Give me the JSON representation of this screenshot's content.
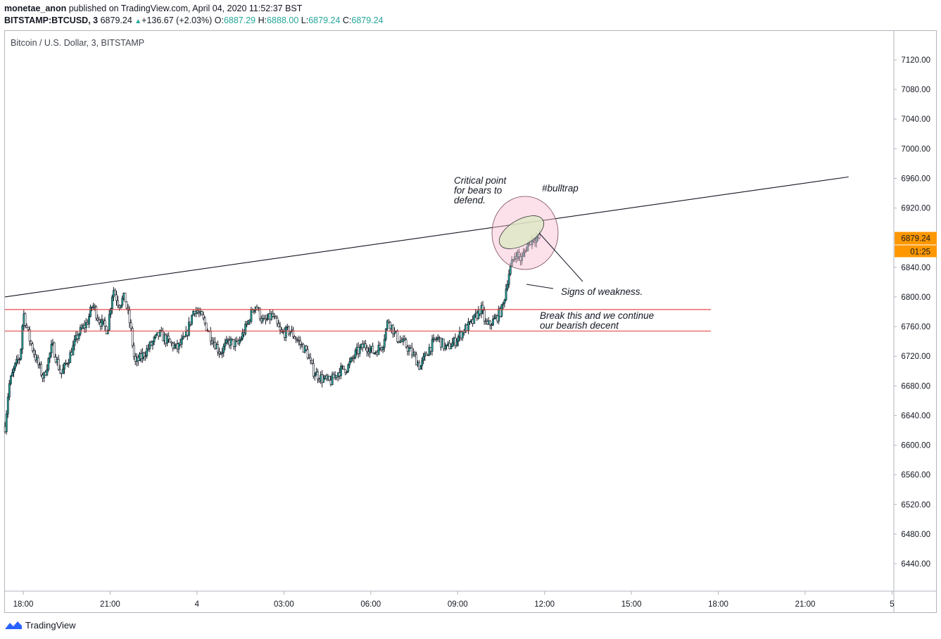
{
  "header": {
    "user": "monetae_anon",
    "published": "published on TradingView.com, April 04, 2020 11:52:37 BST",
    "symbol": "BITSTAMP:BTCUSD, 3",
    "last": "6879.24",
    "change": "+136.67 (+2.03%)",
    "o_label": "O:",
    "o_value": "6887.29",
    "h_label": "H:",
    "h_value": "6888.00",
    "l_label": "L:",
    "l_value": "6879.24",
    "c_label": "C:",
    "c_value": "6879.24"
  },
  "chart_title": "Bitcoin / U.S. Dollar, 3, BITSTAMP",
  "footer": {
    "brand": "TradingView"
  },
  "colors": {
    "up": "#26a69a",
    "down": "#ffffff",
    "wick": "#131722",
    "price_label": "#ff9800",
    "support": "#e53935",
    "ellipse_outer": "#f8bbd0",
    "ellipse_inner": "#dce8c4"
  },
  "chart_data": {
    "type": "candlestick",
    "title": "Bitcoin / U.S. Dollar, 3, BITSTAMP",
    "y_ticks": [
      7120,
      7080,
      7040,
      7000,
      6960,
      6920,
      6880,
      6840,
      6800,
      6760,
      6720,
      6680,
      6640,
      6600,
      6560,
      6520,
      6480,
      6440
    ],
    "y_tick_labels": [
      "7120.00",
      "7080.00",
      "7040.00",
      "7000.00",
      "6960.00",
      "6920.00",
      "6880.00",
      "6840.00",
      "6800.00",
      "6760.00",
      "6720.00",
      "6680.00",
      "6640.00",
      "6600.00",
      "6560.00",
      "6520.00",
      "6480.00",
      "6440.00"
    ],
    "ylim": [
      6400,
      7150
    ],
    "x_ticks": [
      {
        "label": "18:00",
        "h": 18
      },
      {
        "label": "21:00",
        "h": 21
      },
      {
        "label": "4",
        "h": 24
      },
      {
        "label": "03:00",
        "h": 27
      },
      {
        "label": "06:00",
        "h": 30
      },
      {
        "label": "09:00",
        "h": 33
      },
      {
        "label": "12:00",
        "h": 36
      },
      {
        "label": "15:00",
        "h": 39
      },
      {
        "label": "18:00",
        "h": 42
      },
      {
        "label": "21:00",
        "h": 45
      },
      {
        "label": "5",
        "h": 48
      }
    ],
    "xlim_hours": [
      17.37,
      47.97
    ],
    "current_price": "6879.24",
    "countdown": "01:25",
    "current_value": 6879.24,
    "close_path": [
      [
        17.37,
        6625
      ],
      [
        17.5,
        6680
      ],
      [
        17.7,
        6705
      ],
      [
        17.9,
        6720
      ],
      [
        18.0,
        6780
      ],
      [
        18.2,
        6745
      ],
      [
        18.45,
        6715
      ],
      [
        18.7,
        6690
      ],
      [
        19.0,
        6735
      ],
      [
        19.3,
        6695
      ],
      [
        19.6,
        6720
      ],
      [
        19.9,
        6750
      ],
      [
        20.2,
        6765
      ],
      [
        20.4,
        6790
      ],
      [
        20.6,
        6770
      ],
      [
        20.9,
        6755
      ],
      [
        21.1,
        6812
      ],
      [
        21.3,
        6790
      ],
      [
        21.5,
        6800
      ],
      [
        21.7,
        6760
      ],
      [
        21.85,
        6710
      ],
      [
        22.1,
        6720
      ],
      [
        22.4,
        6735
      ],
      [
        22.7,
        6750
      ],
      [
        23.0,
        6740
      ],
      [
        23.3,
        6730
      ],
      [
        23.6,
        6745
      ],
      [
        23.9,
        6785
      ],
      [
        24.2,
        6770
      ],
      [
        24.5,
        6745
      ],
      [
        24.8,
        6725
      ],
      [
        25.1,
        6740
      ],
      [
        25.4,
        6735
      ],
      [
        25.7,
        6760
      ],
      [
        26.0,
        6790
      ],
      [
        26.3,
        6765
      ],
      [
        26.6,
        6775
      ],
      [
        26.9,
        6750
      ],
      [
        27.2,
        6755
      ],
      [
        27.5,
        6740
      ],
      [
        27.8,
        6725
      ],
      [
        28.0,
        6700
      ],
      [
        28.3,
        6690
      ],
      [
        28.6,
        6685
      ],
      [
        28.9,
        6700
      ],
      [
        29.2,
        6705
      ],
      [
        29.5,
        6725
      ],
      [
        29.8,
        6735
      ],
      [
        30.1,
        6725
      ],
      [
        30.4,
        6735
      ],
      [
        30.6,
        6770
      ],
      [
        30.9,
        6745
      ],
      [
        31.2,
        6735
      ],
      [
        31.5,
        6720
      ],
      [
        31.7,
        6705
      ],
      [
        32.0,
        6730
      ],
      [
        32.3,
        6745
      ],
      [
        32.6,
        6730
      ],
      [
        32.9,
        6740
      ],
      [
        33.2,
        6755
      ],
      [
        33.5,
        6765
      ],
      [
        33.8,
        6785
      ],
      [
        34.0,
        6760
      ],
      [
        34.3,
        6770
      ],
      [
        34.55,
        6785
      ],
      [
        34.75,
        6830
      ],
      [
        35.0,
        6860
      ],
      [
        35.2,
        6850
      ],
      [
        35.4,
        6870
      ],
      [
        35.6,
        6880
      ],
      [
        35.82,
        6879.24
      ]
    ],
    "trendline": {
      "from": [
        17.37,
        6800
      ],
      "to": [
        46.5,
        6962
      ]
    },
    "support_lines": [
      6783,
      6754
    ],
    "annotations": [
      {
        "lines": [
          "Critical point",
          "for bears to",
          "defend."
        ]
      },
      {
        "text": "#bulltrap"
      },
      {
        "text": "Signs of weakness."
      },
      {
        "lines": [
          "Break this and we continue",
          "our bearish decent"
        ]
      }
    ]
  }
}
